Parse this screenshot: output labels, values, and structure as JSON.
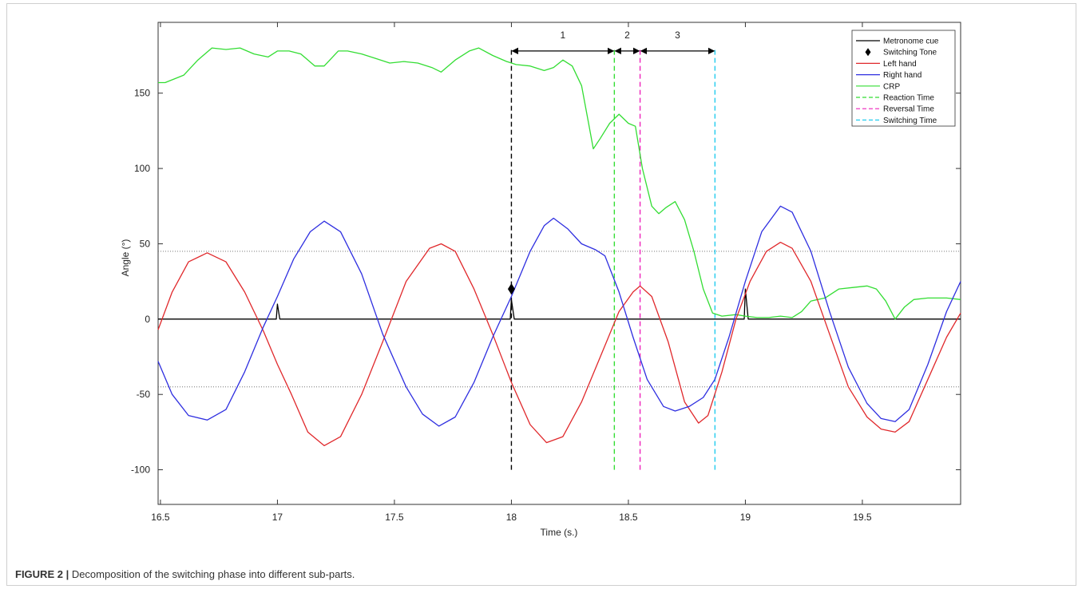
{
  "caption": {
    "label": "FIGURE 2 |",
    "text": " Decomposition of the switching phase into different sub-parts."
  },
  "chart_data": {
    "type": "line",
    "title": "",
    "xlabel": "Time (s.)",
    "ylabel": "Angle (°)",
    "xlim": [
      16.49,
      19.92
    ],
    "ylim": [
      -123,
      197
    ],
    "x_ticks": [
      16.5,
      17,
      17.5,
      18,
      18.5,
      19,
      19.5
    ],
    "x_tick_labels": [
      "16.5",
      "17",
      "17.5",
      "18",
      "18.5",
      "19",
      "19.5"
    ],
    "y_ticks": [
      -100,
      -50,
      0,
      50,
      100,
      150
    ],
    "y_tick_labels": [
      "-100",
      "-50",
      "0",
      "50",
      "100",
      "150"
    ],
    "grid": false,
    "legend_position": "top-right",
    "colors": {
      "metronome": "#000000",
      "left": "#e0282b",
      "right": "#2e2ee0",
      "crp": "#33dd33",
      "reaction": "#33dd33",
      "reversal": "#ee22bb",
      "switching": "#22ccee",
      "threshold": "#777777",
      "axis": "#333333"
    },
    "legend": [
      {
        "label": "Metronome cue",
        "color": "#000000",
        "style": "solid"
      },
      {
        "label": "Switching Tone",
        "color": "#000000",
        "style": "diamond"
      },
      {
        "label": "Left hand",
        "color": "#e0282b",
        "style": "solid"
      },
      {
        "label": "Right hand",
        "color": "#2e2ee0",
        "style": "solid"
      },
      {
        "label": "CRP",
        "color": "#33dd33",
        "style": "solid"
      },
      {
        "label": "Reaction Time",
        "color": "#33dd33",
        "style": "dashed"
      },
      {
        "label": "Reversal Time",
        "color": "#ee22bb",
        "style": "dashed"
      },
      {
        "label": "Switching Time",
        "color": "#22ccee",
        "style": "dashed"
      }
    ],
    "series": [
      {
        "name": "Metronome cue",
        "key": "metronome",
        "points": [
          [
            16.49,
            0
          ],
          [
            16.995,
            0
          ],
          [
            17.0,
            10
          ],
          [
            17.01,
            0
          ],
          [
            17.995,
            0
          ],
          [
            18.0,
            13
          ],
          [
            18.012,
            0
          ],
          [
            18.995,
            0
          ],
          [
            19.0,
            20
          ],
          [
            19.012,
            0
          ],
          [
            19.92,
            0
          ]
        ]
      },
      {
        "name": "Left hand",
        "key": "left",
        "points": [
          [
            16.49,
            -7
          ],
          [
            16.55,
            18
          ],
          [
            16.62,
            38
          ],
          [
            16.7,
            44
          ],
          [
            16.78,
            38
          ],
          [
            16.86,
            18
          ],
          [
            16.94,
            -8
          ],
          [
            17.0,
            -30
          ],
          [
            17.06,
            -50
          ],
          [
            17.13,
            -75
          ],
          [
            17.2,
            -84
          ],
          [
            17.27,
            -78
          ],
          [
            17.36,
            -50
          ],
          [
            17.45,
            -15
          ],
          [
            17.55,
            25
          ],
          [
            17.65,
            47
          ],
          [
            17.7,
            50
          ],
          [
            17.76,
            45
          ],
          [
            17.84,
            20
          ],
          [
            17.92,
            -10
          ],
          [
            18.0,
            -42
          ],
          [
            18.08,
            -70
          ],
          [
            18.15,
            -82
          ],
          [
            18.22,
            -78
          ],
          [
            18.3,
            -55
          ],
          [
            18.38,
            -25
          ],
          [
            18.46,
            5
          ],
          [
            18.52,
            18
          ],
          [
            18.55,
            22
          ],
          [
            18.6,
            15
          ],
          [
            18.67,
            -15
          ],
          [
            18.74,
            -55
          ],
          [
            18.8,
            -69
          ],
          [
            18.84,
            -64
          ],
          [
            18.9,
            -35
          ],
          [
            18.96,
            0
          ],
          [
            19.02,
            25
          ],
          [
            19.09,
            45
          ],
          [
            19.15,
            51
          ],
          [
            19.2,
            47
          ],
          [
            19.28,
            25
          ],
          [
            19.36,
            -10
          ],
          [
            19.44,
            -45
          ],
          [
            19.52,
            -65
          ],
          [
            19.58,
            -73
          ],
          [
            19.64,
            -75
          ],
          [
            19.7,
            -68
          ],
          [
            19.78,
            -40
          ],
          [
            19.86,
            -12
          ],
          [
            19.92,
            4
          ]
        ]
      },
      {
        "name": "Right hand",
        "key": "right",
        "points": [
          [
            16.49,
            -28
          ],
          [
            16.55,
            -50
          ],
          [
            16.62,
            -64
          ],
          [
            16.7,
            -67
          ],
          [
            16.78,
            -60
          ],
          [
            16.86,
            -35
          ],
          [
            16.94,
            -5
          ],
          [
            17.0,
            15
          ],
          [
            17.07,
            40
          ],
          [
            17.14,
            58
          ],
          [
            17.2,
            65
          ],
          [
            17.27,
            58
          ],
          [
            17.36,
            30
          ],
          [
            17.45,
            -10
          ],
          [
            17.55,
            -45
          ],
          [
            17.62,
            -63
          ],
          [
            17.69,
            -71
          ],
          [
            17.76,
            -65
          ],
          [
            17.84,
            -42
          ],
          [
            17.92,
            -12
          ],
          [
            18.0,
            15
          ],
          [
            18.08,
            45
          ],
          [
            18.14,
            62
          ],
          [
            18.18,
            67
          ],
          [
            18.24,
            60
          ],
          [
            18.3,
            50
          ],
          [
            18.36,
            46
          ],
          [
            18.4,
            42
          ],
          [
            18.46,
            18
          ],
          [
            18.52,
            -12
          ],
          [
            18.58,
            -40
          ],
          [
            18.65,
            -58
          ],
          [
            18.7,
            -61
          ],
          [
            18.76,
            -58
          ],
          [
            18.82,
            -52
          ],
          [
            18.87,
            -40
          ],
          [
            18.93,
            -12
          ],
          [
            19.0,
            25
          ],
          [
            19.07,
            58
          ],
          [
            19.15,
            75
          ],
          [
            19.2,
            71
          ],
          [
            19.28,
            45
          ],
          [
            19.36,
            5
          ],
          [
            19.44,
            -32
          ],
          [
            19.52,
            -56
          ],
          [
            19.58,
            -66
          ],
          [
            19.64,
            -68
          ],
          [
            19.7,
            -60
          ],
          [
            19.78,
            -30
          ],
          [
            19.86,
            5
          ],
          [
            19.92,
            25
          ]
        ]
      },
      {
        "name": "CRP",
        "key": "crp",
        "points": [
          [
            16.49,
            157
          ],
          [
            16.52,
            157
          ],
          [
            16.6,
            162
          ],
          [
            16.66,
            172
          ],
          [
            16.72,
            180
          ],
          [
            16.78,
            179
          ],
          [
            16.84,
            180
          ],
          [
            16.9,
            176
          ],
          [
            16.96,
            174
          ],
          [
            17.0,
            178
          ],
          [
            17.05,
            178
          ],
          [
            17.1,
            176
          ],
          [
            17.16,
            168
          ],
          [
            17.2,
            168
          ],
          [
            17.26,
            178
          ],
          [
            17.3,
            178
          ],
          [
            17.36,
            176
          ],
          [
            17.42,
            173
          ],
          [
            17.48,
            170
          ],
          [
            17.54,
            171
          ],
          [
            17.6,
            170
          ],
          [
            17.66,
            167
          ],
          [
            17.7,
            164
          ],
          [
            17.76,
            172
          ],
          [
            17.82,
            178
          ],
          [
            17.86,
            180
          ],
          [
            17.92,
            175
          ],
          [
            17.98,
            171
          ],
          [
            18.02,
            169
          ],
          [
            18.08,
            168
          ],
          [
            18.14,
            165
          ],
          [
            18.18,
            167
          ],
          [
            18.22,
            172
          ],
          [
            18.26,
            168
          ],
          [
            18.3,
            155
          ],
          [
            18.33,
            130
          ],
          [
            18.35,
            113
          ],
          [
            18.38,
            120
          ],
          [
            18.42,
            130
          ],
          [
            18.46,
            136
          ],
          [
            18.5,
            130
          ],
          [
            18.53,
            128
          ],
          [
            18.56,
            100
          ],
          [
            18.6,
            75
          ],
          [
            18.63,
            70
          ],
          [
            18.66,
            74
          ],
          [
            18.7,
            78
          ],
          [
            18.74,
            66
          ],
          [
            18.78,
            45
          ],
          [
            18.82,
            20
          ],
          [
            18.86,
            4
          ],
          [
            18.9,
            2
          ],
          [
            18.96,
            3
          ],
          [
            19.0,
            2
          ],
          [
            19.05,
            1
          ],
          [
            19.1,
            1
          ],
          [
            19.15,
            2
          ],
          [
            19.2,
            1
          ],
          [
            19.24,
            5
          ],
          [
            19.28,
            12
          ],
          [
            19.34,
            14
          ],
          [
            19.4,
            20
          ],
          [
            19.46,
            21
          ],
          [
            19.52,
            22
          ],
          [
            19.56,
            20
          ],
          [
            19.6,
            12
          ],
          [
            19.64,
            0
          ],
          [
            19.68,
            8
          ],
          [
            19.72,
            13
          ],
          [
            19.78,
            14
          ],
          [
            19.86,
            14
          ],
          [
            19.92,
            13
          ]
        ]
      }
    ],
    "switching_tone": {
      "x": 18.0,
      "y": 20
    },
    "vertical_markers": [
      {
        "name": "Switching Tone",
        "key": "metronome",
        "x": 18.0,
        "y_from": -100,
        "y_to": 180
      },
      {
        "name": "Reaction Time",
        "key": "reaction",
        "x": 18.44,
        "y_from": -100,
        "y_to": 180
      },
      {
        "name": "Reversal Time",
        "key": "reversal",
        "x": 18.55,
        "y_from": -100,
        "y_to": 180
      },
      {
        "name": "Switching Time",
        "key": "switching",
        "x": 18.87,
        "y_from": -100,
        "y_to": 180
      }
    ],
    "thresholds": [
      45,
      -45
    ],
    "phase_arrows": [
      {
        "label": "1",
        "x0": 18.0,
        "x1": 18.44,
        "y": 178
      },
      {
        "label": "2",
        "x0": 18.44,
        "x1": 18.55,
        "y": 178
      },
      {
        "label": "3",
        "x0": 18.55,
        "x1": 18.87,
        "y": 178
      }
    ]
  }
}
